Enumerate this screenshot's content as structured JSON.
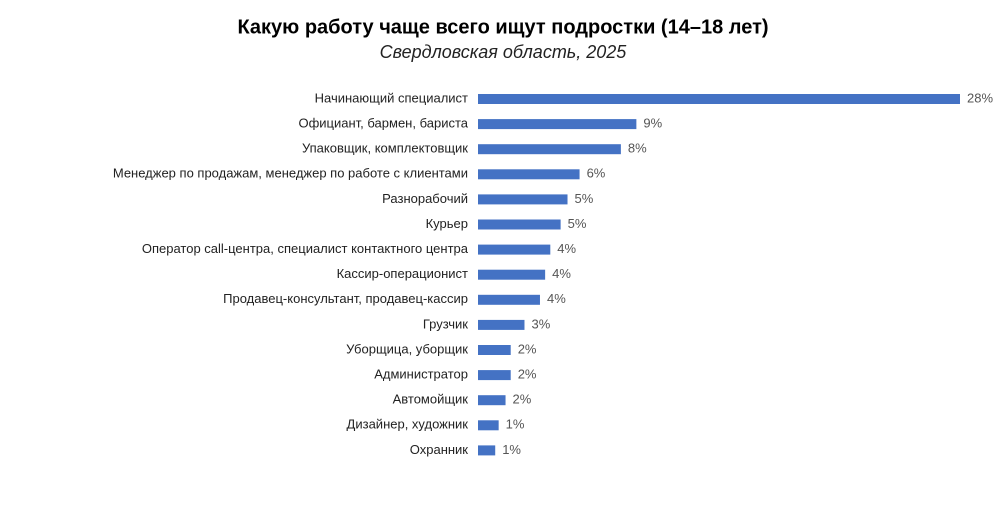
{
  "chart_data": {
    "type": "barh",
    "title": "Какую работу чаще всего ищут подростки (14–18 лет)",
    "subtitle": "Свердловская область, 2025",
    "categories": [
      "Начинающий специалист",
      "Официант, бармен, бариста",
      "Упаковщик, комплектовщик",
      "Менеджер по продажам, менеджер по работе с клиентами",
      "Разнорабочий",
      "Курьер",
      "Оператор call-центра, специалист контактного центра",
      "Кассир-операционист",
      "Продавец-консультант, продавец-кассир",
      "Грузчик",
      "Уборщица, уборщик",
      "Администратор",
      "Автомойщик",
      "Дизайнер, художник",
      "Охранник"
    ],
    "values": [
      28,
      9.2,
      8.3,
      5.9,
      5.2,
      4.8,
      4.2,
      3.9,
      3.6,
      2.7,
      1.9,
      1.9,
      1.6,
      1.2,
      1.0
    ],
    "value_labels": [
      "28%",
      "9%",
      "8%",
      "6%",
      "5%",
      "5%",
      "4%",
      "4%",
      "4%",
      "3%",
      "2%",
      "2%",
      "2%",
      "1%",
      "1%"
    ],
    "color": "#4472c4"
  }
}
